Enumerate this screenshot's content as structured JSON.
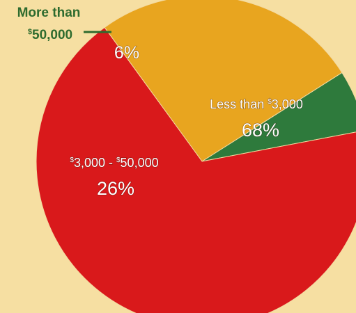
{
  "chart_data": {
    "type": "pie",
    "slices": [
      {
        "label_prefix": "$",
        "label_main": "3,000 - ",
        "label_prefix2": "$",
        "label_main2": "50,000",
        "value": 26,
        "value_label": "26%",
        "color": "#e8a51f"
      },
      {
        "label_prefix": "",
        "label_main": "More than",
        "label_prefix2": "$",
        "label_main2": "50,000",
        "value": 6,
        "value_label": "6%",
        "color": "#2e7a3c"
      },
      {
        "label_prefix": "",
        "label_main": "Less than ",
        "label_prefix2": "$",
        "label_main2": "3,000",
        "value": 68,
        "value_label": "68%",
        "color": "#d9191b"
      }
    ]
  },
  "callout": {
    "line1": "More than",
    "line2_sup": "$",
    "line2": "50,000",
    "color": "#2e6b2e"
  },
  "labels": {
    "red_line1": "Less than ",
    "red_sup": "$",
    "red_line1b": "3,000",
    "red_pct": "68%",
    "yellow_sup1": "$",
    "yellow_a": "3,000 - ",
    "yellow_sup2": "$",
    "yellow_b": "50,000",
    "yellow_pct": "26%",
    "green_pct": "6%"
  }
}
